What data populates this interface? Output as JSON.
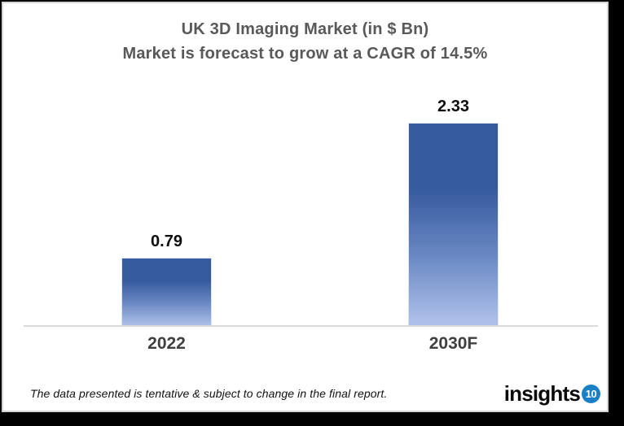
{
  "title": {
    "line1": "UK 3D Imaging Market (in $ Bn)",
    "line2": "Market is forecast to grow at a CAGR of 14.5%"
  },
  "chart_data": {
    "type": "bar",
    "title": "UK 3D Imaging Market (in $ Bn)",
    "subtitle": "Market is forecast to grow at a CAGR of 14.5%",
    "categories": [
      "2022",
      "2030F"
    ],
    "values": [
      0.79,
      2.33
    ],
    "data_labels": [
      "0.79",
      "2.33"
    ],
    "xlabel": "",
    "ylabel": "",
    "ylim": [
      0,
      2.4
    ],
    "grid": false,
    "legend": "none",
    "bar_gradient_top": "#365a9e",
    "bar_gradient_mid": "#6988c3",
    "bar_gradient_bottom": "#aec0e9",
    "axis_color": "#d9d9d9"
  },
  "footer": {
    "note": "The data presented is tentative & subject to change in the final report.",
    "logo_text": "insights",
    "logo_badge": "10",
    "logo_badge_color": "#1b7fc6"
  }
}
